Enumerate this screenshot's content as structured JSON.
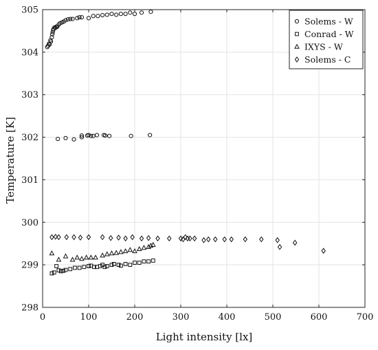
{
  "chart_data": {
    "type": "scatter",
    "title": "",
    "xlabel": "Light intensity [lx]",
    "ylabel": "Temperature [K]",
    "xlim": [
      0,
      700
    ],
    "ylim": [
      298,
      305
    ],
    "xticks": [
      "0",
      "100",
      "200",
      "300",
      "400",
      "500",
      "600",
      "700"
    ],
    "yticks": [
      "298",
      "299",
      "300",
      "301",
      "302",
      "303",
      "304",
      "305"
    ],
    "grid": true,
    "legend_position": "top-right",
    "series": [
      {
        "name": "Solems - W",
        "marker": "circle",
        "points": [
          [
            10,
            304.12
          ],
          [
            12,
            304.15
          ],
          [
            14,
            304.2
          ],
          [
            15,
            304.18
          ],
          [
            17,
            304.28
          ],
          [
            18,
            304.25
          ],
          [
            20,
            304.35
          ],
          [
            21,
            304.42
          ],
          [
            22,
            304.47
          ],
          [
            23,
            304.52
          ],
          [
            24,
            304.55
          ],
          [
            26,
            304.58
          ],
          [
            28,
            304.57
          ],
          [
            30,
            304.6
          ],
          [
            32,
            304.6
          ],
          [
            35,
            304.65
          ],
          [
            38,
            304.68
          ],
          [
            42,
            304.7
          ],
          [
            46,
            304.72
          ],
          [
            50,
            304.75
          ],
          [
            55,
            304.77
          ],
          [
            60,
            304.78
          ],
          [
            65,
            304.78
          ],
          [
            75,
            304.8
          ],
          [
            80,
            304.82
          ],
          [
            85,
            304.82
          ],
          [
            100,
            304.8
          ],
          [
            110,
            304.85
          ],
          [
            120,
            304.85
          ],
          [
            130,
            304.87
          ],
          [
            140,
            304.88
          ],
          [
            150,
            304.9
          ],
          [
            160,
            304.88
          ],
          [
            170,
            304.9
          ],
          [
            180,
            304.9
          ],
          [
            190,
            304.93
          ],
          [
            200,
            304.9
          ],
          [
            215,
            304.93
          ],
          [
            235,
            304.95
          ],
          [
            33,
            301.96
          ],
          [
            50,
            301.98
          ],
          [
            68,
            301.95
          ],
          [
            85,
            302.0
          ],
          [
            85,
            302.04
          ],
          [
            97,
            302.04
          ],
          [
            100,
            302.05
          ],
          [
            105,
            302.03
          ],
          [
            110,
            302.03
          ],
          [
            118,
            302.05
          ],
          [
            133,
            302.05
          ],
          [
            136,
            302.04
          ],
          [
            145,
            302.03
          ],
          [
            192,
            302.03
          ],
          [
            233,
            302.05
          ]
        ]
      },
      {
        "name": "Conrad - W",
        "marker": "square",
        "points": [
          [
            20,
            298.8
          ],
          [
            25,
            298.82
          ],
          [
            30,
            298.97
          ],
          [
            35,
            298.87
          ],
          [
            40,
            298.85
          ],
          [
            45,
            298.86
          ],
          [
            50,
            298.88
          ],
          [
            60,
            298.9
          ],
          [
            70,
            298.93
          ],
          [
            80,
            298.93
          ],
          [
            90,
            298.95
          ],
          [
            100,
            298.97
          ],
          [
            105,
            298.98
          ],
          [
            112,
            298.95
          ],
          [
            118,
            298.95
          ],
          [
            125,
            298.97
          ],
          [
            130,
            299.0
          ],
          [
            135,
            298.95
          ],
          [
            140,
            298.97
          ],
          [
            150,
            299.0
          ],
          [
            155,
            299.02
          ],
          [
            165,
            299.0
          ],
          [
            170,
            298.98
          ],
          [
            180,
            299.02
          ],
          [
            190,
            299.0
          ],
          [
            200,
            299.05
          ],
          [
            210,
            299.05
          ],
          [
            220,
            299.08
          ],
          [
            230,
            299.08
          ],
          [
            240,
            299.1
          ]
        ]
      },
      {
        "name": "IXYS - W",
        "marker": "triangle",
        "points": [
          [
            20,
            299.27
          ],
          [
            35,
            299.12
          ],
          [
            50,
            299.2
          ],
          [
            65,
            299.12
          ],
          [
            75,
            299.17
          ],
          [
            85,
            299.14
          ],
          [
            95,
            299.17
          ],
          [
            105,
            299.17
          ],
          [
            115,
            299.17
          ],
          [
            130,
            299.22
          ],
          [
            140,
            299.25
          ],
          [
            150,
            299.27
          ],
          [
            160,
            299.28
          ],
          [
            170,
            299.3
          ],
          [
            180,
            299.32
          ],
          [
            190,
            299.35
          ],
          [
            200,
            299.32
          ],
          [
            210,
            299.37
          ],
          [
            220,
            299.4
          ],
          [
            230,
            299.42
          ],
          [
            235,
            299.45
          ],
          [
            240,
            299.47
          ]
        ]
      },
      {
        "name": "Solems - C",
        "marker": "diamond",
        "points": [
          [
            20,
            299.65
          ],
          [
            28,
            299.66
          ],
          [
            35,
            299.65
          ],
          [
            52,
            299.65
          ],
          [
            68,
            299.65
          ],
          [
            82,
            299.64
          ],
          [
            100,
            299.65
          ],
          [
            130,
            299.65
          ],
          [
            148,
            299.63
          ],
          [
            165,
            299.64
          ],
          [
            180,
            299.62
          ],
          [
            195,
            299.65
          ],
          [
            215,
            299.62
          ],
          [
            230,
            299.63
          ],
          [
            250,
            299.62
          ],
          [
            275,
            299.62
          ],
          [
            300,
            299.62
          ],
          [
            305,
            299.6
          ],
          [
            310,
            299.65
          ],
          [
            315,
            299.62
          ],
          [
            320,
            299.62
          ],
          [
            330,
            299.62
          ],
          [
            350,
            299.58
          ],
          [
            360,
            299.6
          ],
          [
            375,
            299.6
          ],
          [
            395,
            299.6
          ],
          [
            410,
            299.6
          ],
          [
            440,
            299.6
          ],
          [
            475,
            299.6
          ],
          [
            510,
            299.58
          ],
          [
            515,
            299.42
          ],
          [
            548,
            299.52
          ],
          [
            610,
            299.33
          ]
        ]
      }
    ]
  }
}
